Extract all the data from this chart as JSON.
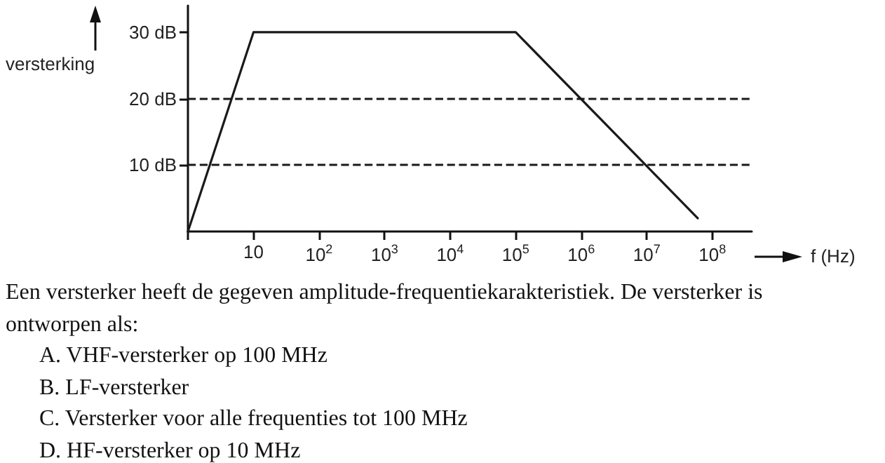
{
  "chart_data": {
    "type": "line",
    "xlabel": "f (Hz)",
    "ylabel": "versterking",
    "x": [
      1,
      10,
      100000,
      60000000
    ],
    "series": [
      {
        "color": "#1a1a1a",
        "values": [
          0,
          30,
          30,
          2
        ]
      }
    ],
    "log": "x",
    "xlim": [
      1,
      400000000
    ],
    "ylim": [
      0,
      34
    ],
    "xticks": [
      {
        "value": 1,
        "label": null
      },
      {
        "value": 10,
        "label": "10"
      },
      {
        "value": 100,
        "label": "10$^{2}$"
      },
      {
        "value": 1000,
        "label": "10$^{3}$"
      },
      {
        "value": 10000,
        "label": "10$^{4}$"
      },
      {
        "value": 100000,
        "label": "10$^{5}$"
      },
      {
        "value": 1000000,
        "label": "10$^{6}$"
      },
      {
        "value": 10000000,
        "label": "10$^{7}$"
      },
      {
        "value": 100000000,
        "label": "10$^{8}$"
      }
    ],
    "yticks": [
      {
        "value": 10,
        "label": "10 dB"
      },
      {
        "value": 20,
        "label": "20 dB"
      },
      {
        "value": 30,
        "label": "30 dB"
      }
    ],
    "ref_lines": [
      {
        "axis": "y",
        "value": 20,
        "line_style": "dashed",
        "color": "#1a1a1a"
      },
      {
        "axis": "y",
        "value": 10,
        "line_style": "dashed",
        "color": "#1a1a1a"
      }
    ],
    "grid": false,
    "marker": "none",
    "line_style": "solid",
    "annotations": [
      "Een versterker heeft de gegeven amplitude-frequentiekarakteristiek. De versterker is ontworpen als:",
      "A.  VHF-versterker op 100 MHz",
      "B.  LF-versterker",
      "C.  Versterker voor alle frequenties tot 100 MHz",
      "D.  HF-versterker op 10 MHz"
    ]
  }
}
